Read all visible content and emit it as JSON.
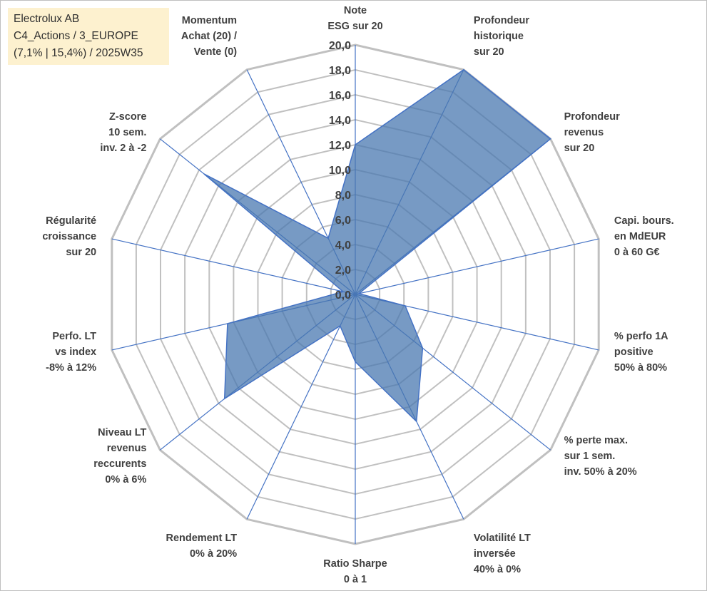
{
  "title_box": {
    "line1": "Electrolux AB",
    "line2": "C4_Actions / 3_EUROPE",
    "line3": "(7,1% | 15,4%) / 2025W35"
  },
  "chart_data": {
    "type": "radar",
    "scale": [
      0,
      20
    ],
    "tick_step": 2,
    "ticks": [
      "0,0",
      "2,0",
      "4,0",
      "6,0",
      "8,0",
      "10,0",
      "12,0",
      "14,0",
      "16,0",
      "18,0",
      "20,0"
    ],
    "grid": true,
    "colors": {
      "fill": "#4a78b0",
      "stroke": "#4472c4",
      "grid": "#c0c0c0",
      "spoke": "#4472c4"
    },
    "axes": [
      {
        "label": [
          "Note",
          "ESG sur 20"
        ],
        "value": 12.0
      },
      {
        "label": [
          "Profondeur",
          "historique",
          "sur 20"
        ],
        "value": 20.0
      },
      {
        "label": [
          "Profondeur",
          "revenus",
          "sur 20"
        ],
        "value": 20.0
      },
      {
        "label": [
          "Capi. bours.",
          "en MdEUR",
          "0 à 60 G€"
        ],
        "value": 0.3
      },
      {
        "label": [
          "% perfo 1A",
          "positive",
          "50% à 80%"
        ],
        "value": 4.1
      },
      {
        "label": [
          "% perte max.",
          "sur 1 sem.",
          "inv. 50% à 20%"
        ],
        "value": 6.9
      },
      {
        "label": [
          "Volatilité LT",
          "inversée",
          "40% à 0%"
        ],
        "value": 11.3
      },
      {
        "label": [
          "Ratio Sharpe",
          "0 à 1"
        ],
        "value": 5.4
      },
      {
        "label": [
          "Rendement LT",
          "0% à 20%"
        ],
        "value": 2.8
      },
      {
        "label": [
          "Niveau LT",
          "revenus",
          "reccurents",
          "0% à 6%"
        ],
        "value": 13.4
      },
      {
        "label": [
          "Perfo. LT",
          "vs index",
          "-8% à 12%"
        ],
        "value": 10.5
      },
      {
        "label": [
          "Régularité",
          "croissance",
          "sur 20"
        ],
        "value": 1.0
      },
      {
        "label": [
          "Z-score",
          "10 sem.",
          "inv. 2 à -2"
        ],
        "value": 15.5
      },
      {
        "label": [
          "Momentum",
          "Achat (20) /",
          "Vente (0)"
        ],
        "value": 5.0
      }
    ]
  }
}
